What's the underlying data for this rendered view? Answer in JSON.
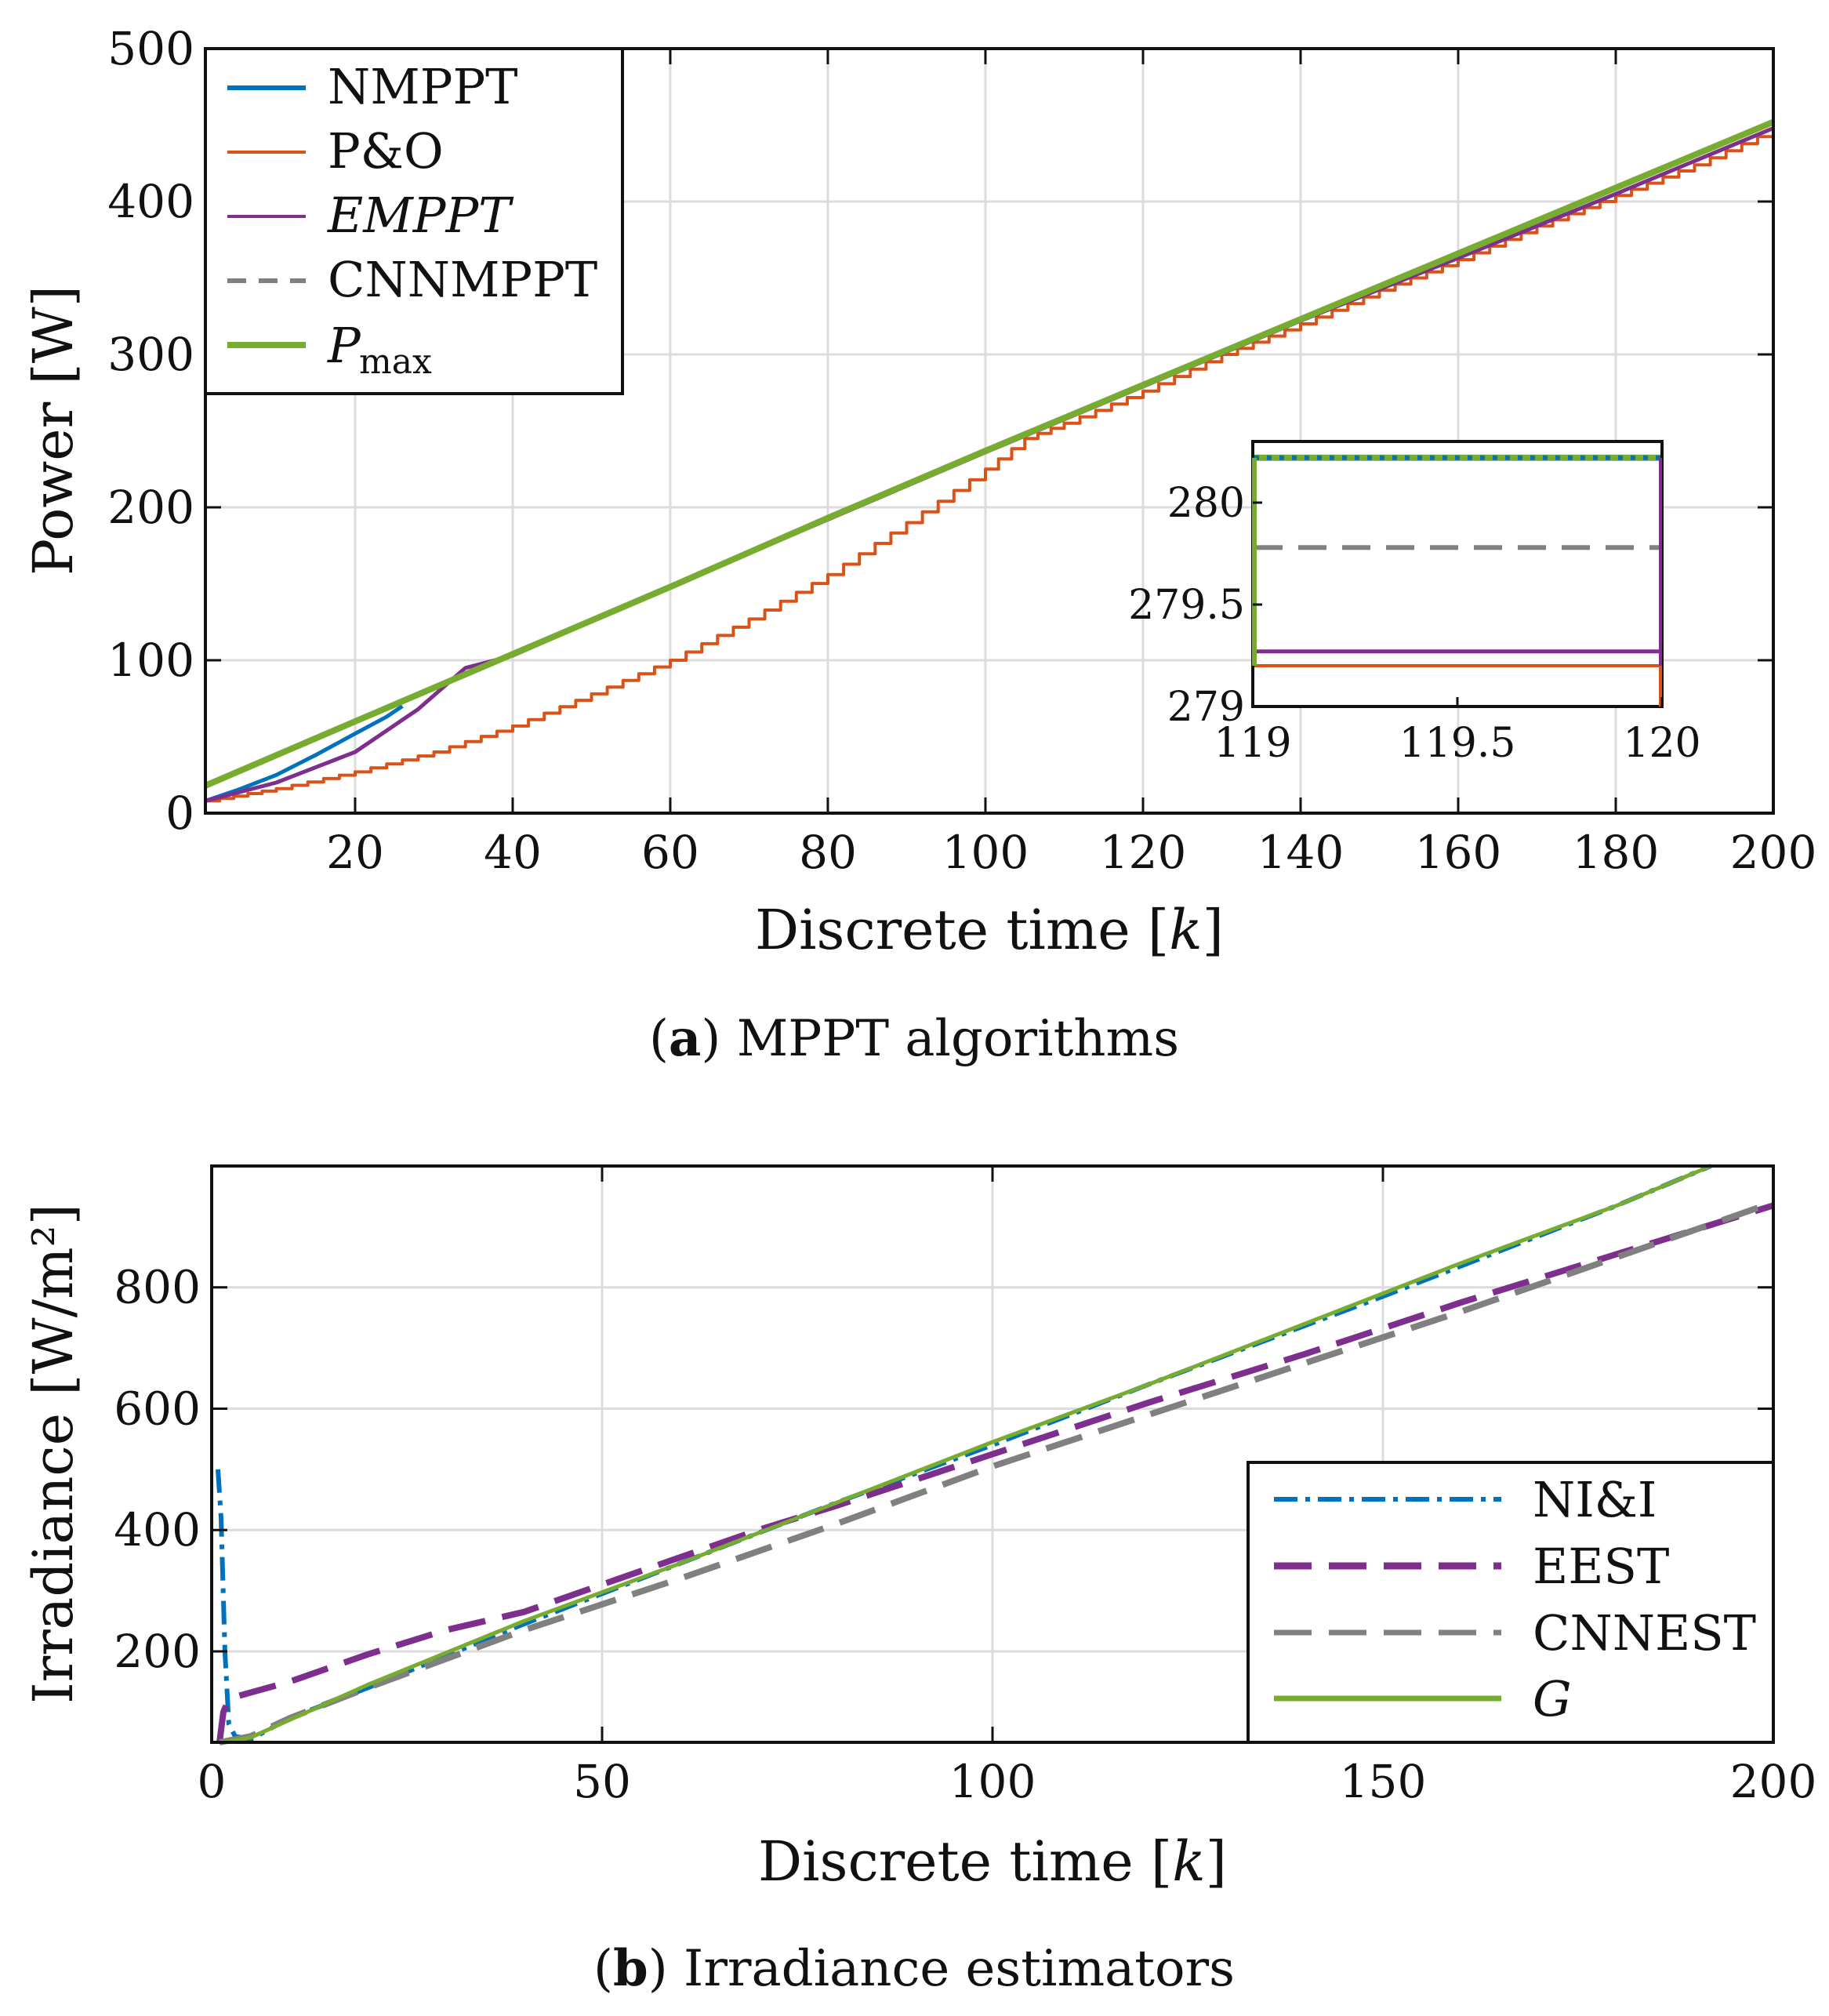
{
  "colors": {
    "nmppt": "#0072BD",
    "po": "#D95319",
    "empt": "#7E2F8E",
    "cnn": "#808080",
    "pmax": "#77AC30",
    "grid": "#dcdcdc",
    "axis": "#111111"
  },
  "chart_data": [
    {
      "type": "line",
      "id": "a",
      "caption_label": "a",
      "caption_text": "MPPT algorithms",
      "xlabel_main": "Discrete time ",
      "xlabel_var": "k",
      "ylabel": "Power [W]",
      "xlim": [
        1,
        200
      ],
      "ylim": [
        0,
        500
      ],
      "xticks": [
        20,
        40,
        60,
        80,
        100,
        120,
        140,
        160,
        180,
        200
      ],
      "yticks": [
        0,
        100,
        200,
        300,
        400,
        500
      ],
      "grid": true,
      "legend_position": "top-left",
      "series": [
        {
          "name": "NMPPT",
          "display": "NMPPT",
          "key": "nmppt",
          "style": "solid",
          "x": [
            1,
            5,
            10,
            15,
            20,
            24,
            26
          ],
          "y": [
            8,
            15,
            25,
            38,
            52,
            63,
            70
          ]
        },
        {
          "name": "P&O",
          "display": "P&O",
          "key": "po",
          "style": "step",
          "x": [
            1,
            10,
            20,
            30,
            40,
            50,
            60,
            70,
            80,
            90,
            100,
            105,
            110,
            120,
            130,
            140,
            150,
            160,
            170,
            180,
            190,
            200
          ],
          "y": [
            8,
            16,
            27,
            40,
            57,
            78,
            100,
            127,
            156,
            190,
            225,
            245,
            255,
            276,
            300,
            320,
            342,
            362,
            384,
            404,
            424,
            447
          ]
        },
        {
          "name": "EMPPT",
          "display": "EMPPT",
          "key": "empt",
          "style": "solid",
          "x": [
            1,
            10,
            20,
            28,
            34,
            40,
            60,
            80,
            100,
            120,
            140,
            160,
            180,
            200
          ],
          "y": [
            8,
            20,
            40,
            68,
            95,
            103,
            148,
            192,
            236,
            279,
            322,
            363,
            405,
            448
          ]
        },
        {
          "name": "CNNMPPT",
          "display": "CNNMPPT",
          "key": "cnn",
          "style": "dashed",
          "x": [
            1,
            20,
            40,
            60,
            80,
            100,
            120,
            140,
            160,
            180,
            200
          ],
          "y": [
            18,
            60,
            104,
            148,
            193,
            237,
            280,
            323,
            366,
            409,
            452
          ]
        },
        {
          "name": "Pmax",
          "display": "P",
          "sub": "max",
          "key": "pmax",
          "style": "thick",
          "x": [
            1,
            20,
            40,
            60,
            80,
            100,
            120,
            140,
            160,
            180,
            200
          ],
          "y": [
            18,
            60,
            104,
            148,
            193,
            237,
            280,
            323,
            366,
            409,
            452
          ]
        }
      ],
      "inset": {
        "xlim": [
          119,
          120
        ],
        "ylim": [
          279,
          280.3
        ],
        "xticks": [
          "119",
          "119.5",
          "120"
        ],
        "yticks": [
          "279",
          "279.5",
          "280"
        ],
        "series": [
          {
            "key": "pmax",
            "y": 280.22
          },
          {
            "key": "nmppt",
            "y": 280.22
          },
          {
            "key": "cnn",
            "y": 279.78
          },
          {
            "key": "empt",
            "y": 279.27
          },
          {
            "key": "po",
            "y": 279.2
          }
        ]
      }
    },
    {
      "type": "line",
      "id": "b",
      "caption_label": "b",
      "caption_text": "Irradiance estimators",
      "xlabel_main": "Discrete time ",
      "xlabel_var": "k",
      "ylabel": "Irradiance [W/m²]",
      "xlim": [
        0,
        200
      ],
      "ylim": [
        50,
        1000
      ],
      "xticks": [
        0,
        50,
        100,
        150,
        200
      ],
      "yticks": [
        200,
        400,
        600,
        800
      ],
      "grid": true,
      "legend_position": "bottom-right",
      "series": [
        {
          "name": "NI&I",
          "display": "NI&I",
          "key": "nmppt",
          "style": "dashdot",
          "x": [
            0.8,
            1.2,
            1.7,
            2.2,
            3,
            5,
            10,
            20,
            40,
            60,
            80,
            100,
            120,
            150,
            180,
            192
          ],
          "y": [
            500,
            420,
            200,
            80,
            60,
            55,
            90,
            140,
            245,
            345,
            445,
            540,
            640,
            785,
            935,
            1000
          ]
        },
        {
          "name": "EEST",
          "display": "EEST",
          "key": "empt",
          "style": "longdash",
          "x": [
            1,
            1.5,
            2,
            3,
            10,
            20,
            30,
            40,
            50,
            60,
            70,
            80,
            100,
            120,
            140,
            160,
            180,
            200
          ],
          "y": [
            50,
            100,
            115,
            125,
            150,
            195,
            235,
            265,
            310,
            355,
            400,
            440,
            525,
            610,
            690,
            775,
            855,
            935
          ]
        },
        {
          "name": "CNNEST",
          "display": "CNNEST",
          "key": "cnn",
          "style": "longdash",
          "x": [
            1,
            5,
            10,
            20,
            40,
            60,
            80,
            100,
            120,
            140,
            160,
            180,
            200
          ],
          "y": [
            50,
            60,
            90,
            140,
            235,
            320,
            410,
            505,
            590,
            675,
            760,
            850,
            940
          ]
        },
        {
          "name": "G",
          "display": "G",
          "key": "pmax",
          "style": "solid",
          "x": [
            1,
            5,
            20,
            40,
            60,
            80,
            100,
            120,
            140,
            160,
            180,
            192
          ],
          "y": [
            50,
            58,
            145,
            250,
            345,
            445,
            545,
            640,
            740,
            840,
            935,
            1000
          ]
        }
      ]
    }
  ]
}
